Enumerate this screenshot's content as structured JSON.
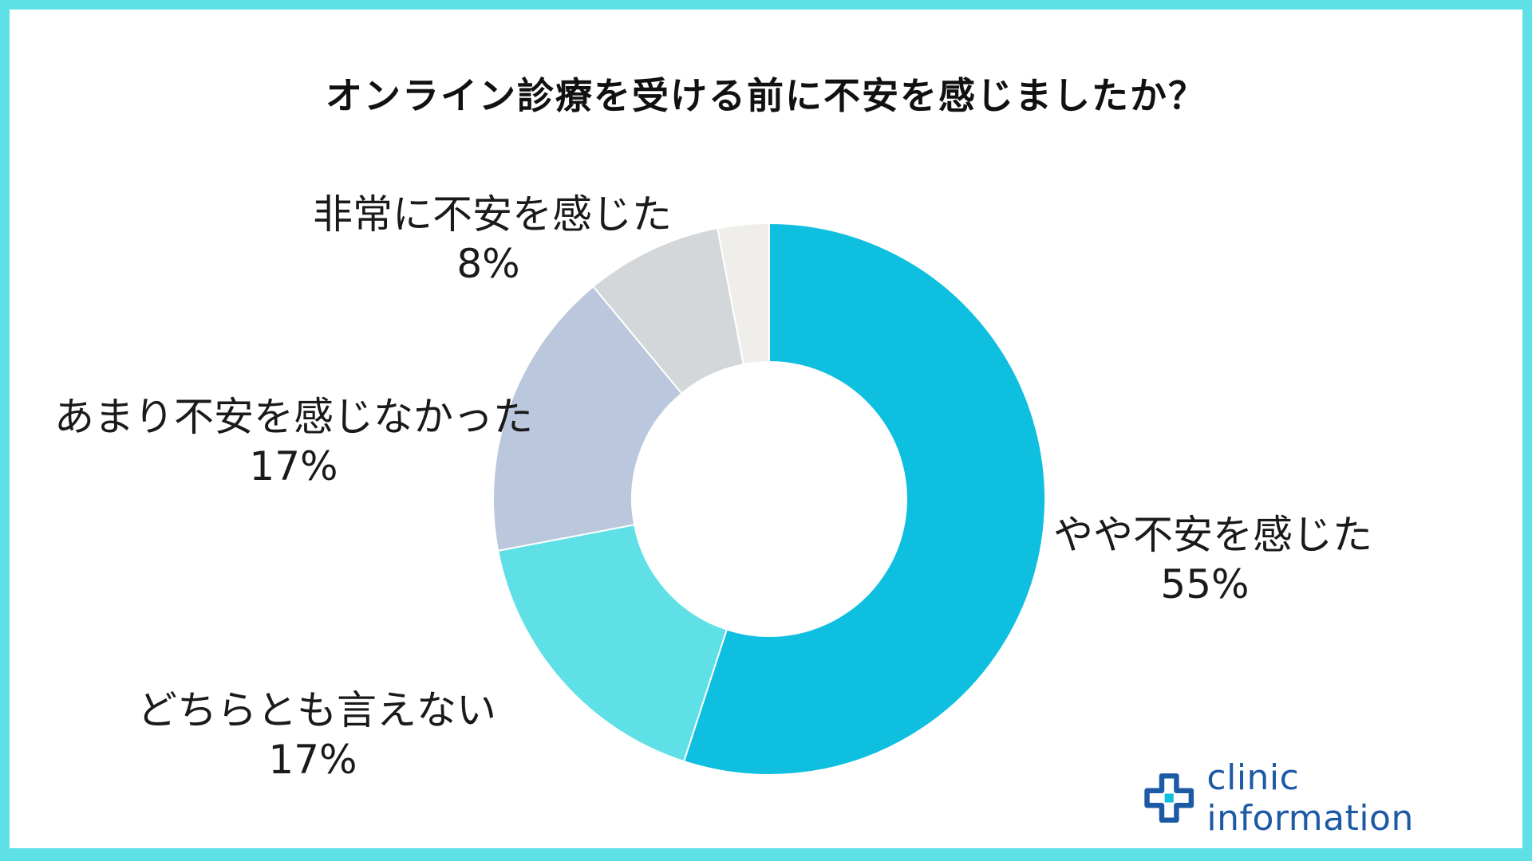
{
  "chart_data": {
    "type": "pie",
    "title": "オンライン診療を受ける前に不安を感じましたか？",
    "slices": [
      {
        "label": "やや不安を感じた",
        "value": 55,
        "value_label": "55%",
        "color": "#0fbfdf"
      },
      {
        "label": "どちらとも言えない",
        "value": 17,
        "value_label": "17%",
        "color": "#5fe0e6"
      },
      {
        "label": "あまり不安を感じなかった",
        "value": 17,
        "value_label": "17%",
        "color": "#bac7dc"
      },
      {
        "label": "非常に不安を感じた",
        "value": 8,
        "value_label": "8%",
        "color": "#d3d7da"
      },
      {
        "label": "",
        "value": 3,
        "value_label": "",
        "color": "#efeeeb"
      }
    ],
    "legend": "none"
  },
  "brand": {
    "name": "clinic information",
    "logo_icon": "medical-cross-icon",
    "color": "#1d5aa6"
  },
  "frame_color": "#5fe0e6"
}
